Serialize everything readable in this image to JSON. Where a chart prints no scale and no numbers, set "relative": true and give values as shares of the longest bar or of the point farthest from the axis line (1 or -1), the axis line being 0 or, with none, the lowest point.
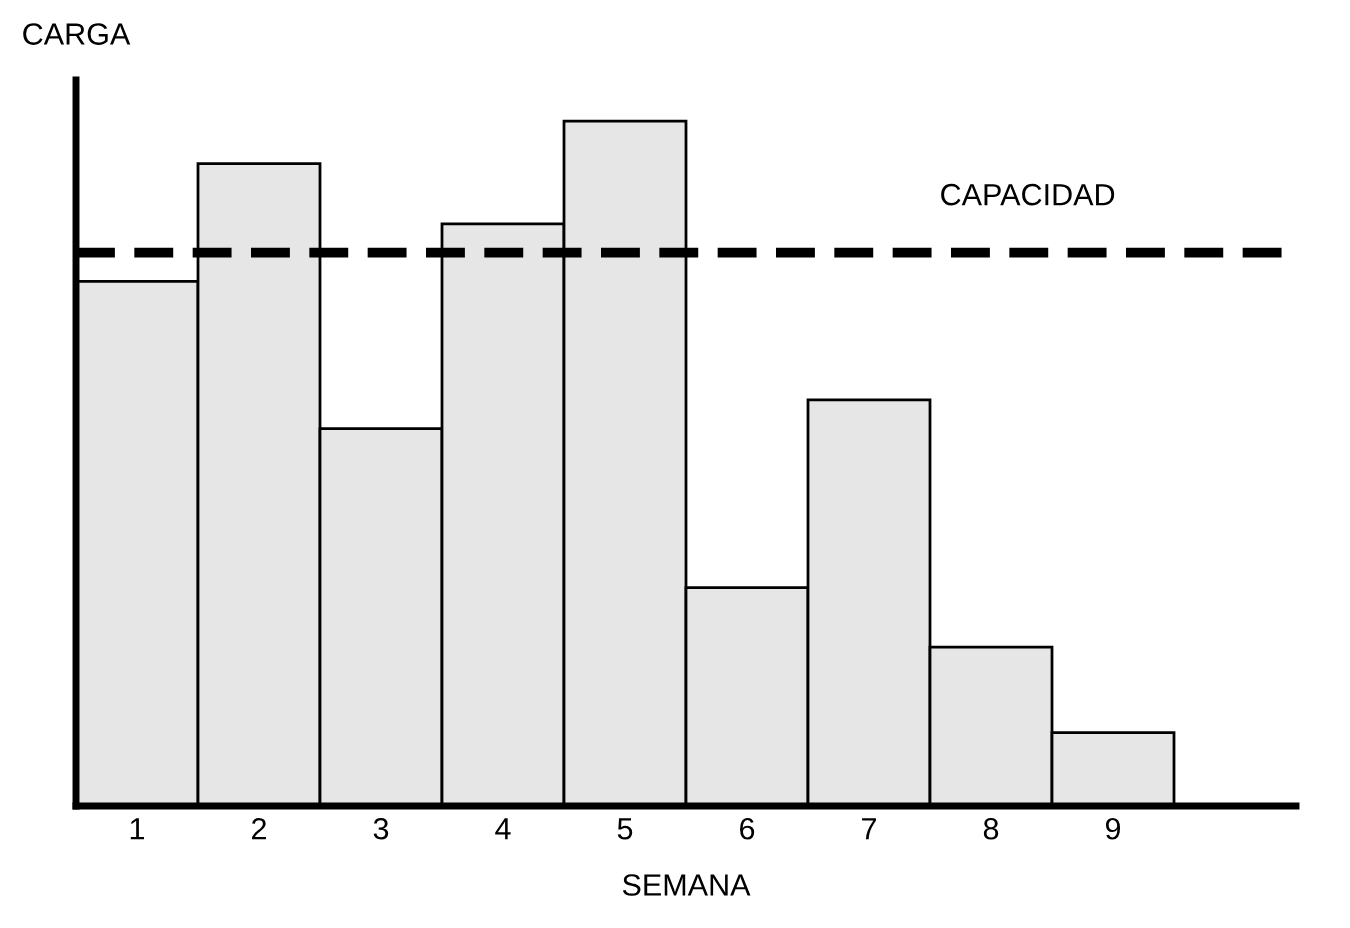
{
  "chart_data": {
    "type": "bar",
    "relative": true,
    "xlabel": "SEMANA",
    "ylabel": "CARGA",
    "categories": [
      "1",
      "2",
      "3",
      "4",
      "5",
      "6",
      "7",
      "8",
      "9"
    ],
    "values": [
      0.766,
      0.938,
      0.551,
      0.85,
      1,
      0.319,
      0.593,
      0.232,
      0.107
    ],
    "color": "#e6e6e6",
    "ref_lines": [
      {
        "axis": "y",
        "value": 0.808,
        "label": "CAPACIDAD",
        "color": "#000000",
        "line_style": "dashed"
      }
    ],
    "grid": false,
    "legend": false
  }
}
